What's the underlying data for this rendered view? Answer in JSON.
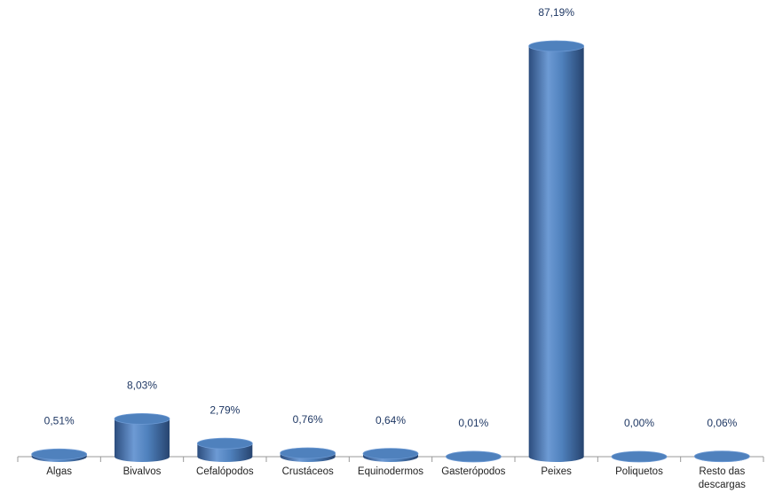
{
  "chart_data": {
    "type": "bar3d",
    "categories": [
      "Algas",
      "Bivalvos",
      "Cefalópodos",
      "Crustáceos",
      "Equinodermos",
      "Gasterópodos",
      "Peixes",
      "Poliquetos",
      "Resto das descargas"
    ],
    "values": [
      0.51,
      8.03,
      2.79,
      0.76,
      0.64,
      0.01,
      87.19,
      0.0,
      0.06
    ],
    "value_labels": [
      "0,51%",
      "8,03%",
      "2,79%",
      "0,76%",
      "0,64%",
      "0,01%",
      "87,19%",
      "0,00%",
      "0,06%"
    ],
    "color": "#4f81bd"
  }
}
